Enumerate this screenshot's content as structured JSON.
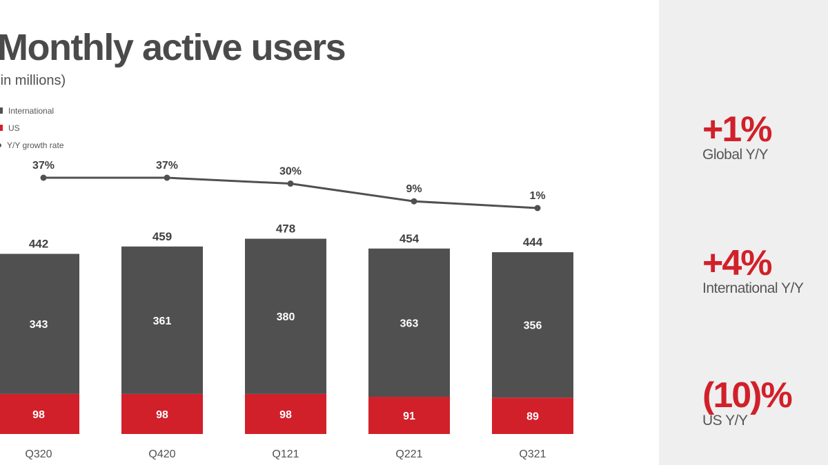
{
  "title": "Monthly active users",
  "subtitle": "(in millions)",
  "legend": [
    {
      "label": "International",
      "color": "#505050",
      "shape": "square"
    },
    {
      "label": "US",
      "color": "#d1202a",
      "shape": "square"
    },
    {
      "label": "Y/Y growth rate",
      "color": "#505050",
      "shape": "circle"
    }
  ],
  "colors": {
    "international": "#505050",
    "us": "#d1202a",
    "line": "#505050",
    "accent": "#d1202a",
    "panel": "#efefef"
  },
  "chart_data": {
    "type": "bar",
    "stacked": true,
    "categories": [
      "Q320",
      "Q420",
      "Q121",
      "Q221",
      "Q321"
    ],
    "series": [
      {
        "name": "US",
        "values": [
          98,
          98,
          98,
          91,
          89
        ]
      },
      {
        "name": "International",
        "values": [
          343,
          361,
          380,
          363,
          356
        ]
      }
    ],
    "totals": [
      442,
      459,
      478,
      454,
      444
    ],
    "line_series": {
      "name": "Y/Y growth rate",
      "values": [
        37,
        37,
        30,
        9,
        1
      ],
      "labels": [
        "37%",
        "37%",
        "30%",
        "9%",
        "1%"
      ]
    },
    "grid": false,
    "legend_position": "top-left"
  },
  "stats": [
    {
      "value": "+1%",
      "label": "Global Y/Y"
    },
    {
      "value": "+4%",
      "label": "International Y/Y"
    },
    {
      "value": "(10)%",
      "label": "US Y/Y"
    }
  ]
}
